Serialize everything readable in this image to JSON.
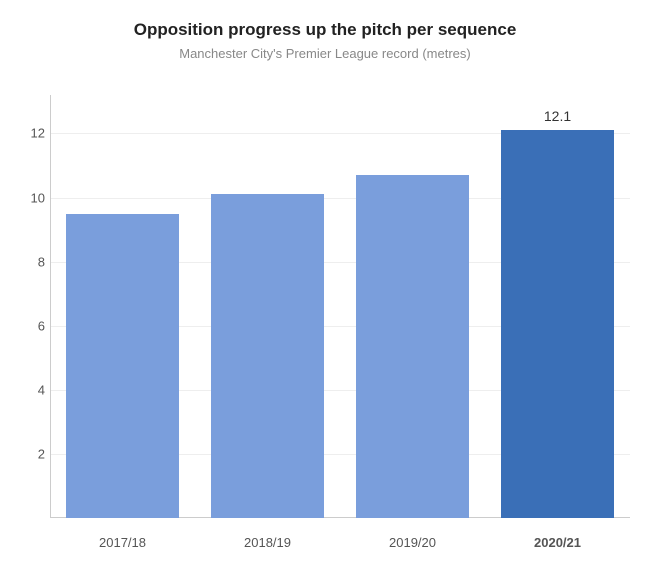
{
  "chart": {
    "type": "bar",
    "title": "Opposition progress up the pitch per sequence",
    "title_fontsize": 17,
    "title_color": "#222222",
    "subtitle": "Manchester City's Premier League record (metres)",
    "subtitle_fontsize": 13,
    "subtitle_color": "#888888",
    "background_color": "#ffffff",
    "grid_color": "#eeeeee",
    "axis_color": "#cccccc",
    "categories": [
      "2017/18",
      "2018/19",
      "2019/20",
      "2020/21"
    ],
    "values": [
      9.5,
      10.1,
      10.7,
      12.1
    ],
    "bar_colors": [
      "#7a9edc",
      "#7a9edc",
      "#7a9edc",
      "#3a6fb7"
    ],
    "show_value_label": [
      false,
      false,
      false,
      true
    ],
    "bold_category": [
      false,
      false,
      false,
      true
    ],
    "value_labels": [
      "9.5",
      "10.1",
      "10.7",
      "12.1"
    ],
    "ylim": [
      0,
      13.2
    ],
    "yticks": [
      2,
      4,
      6,
      8,
      10,
      12
    ],
    "ytick_labels": [
      "2",
      "4",
      "6",
      "8",
      "10",
      "12"
    ],
    "bar_width_ratio": 0.78,
    "label_fontsize": 13,
    "label_color": "#555555",
    "value_label_fontsize": 14,
    "value_label_color": "#333333"
  }
}
